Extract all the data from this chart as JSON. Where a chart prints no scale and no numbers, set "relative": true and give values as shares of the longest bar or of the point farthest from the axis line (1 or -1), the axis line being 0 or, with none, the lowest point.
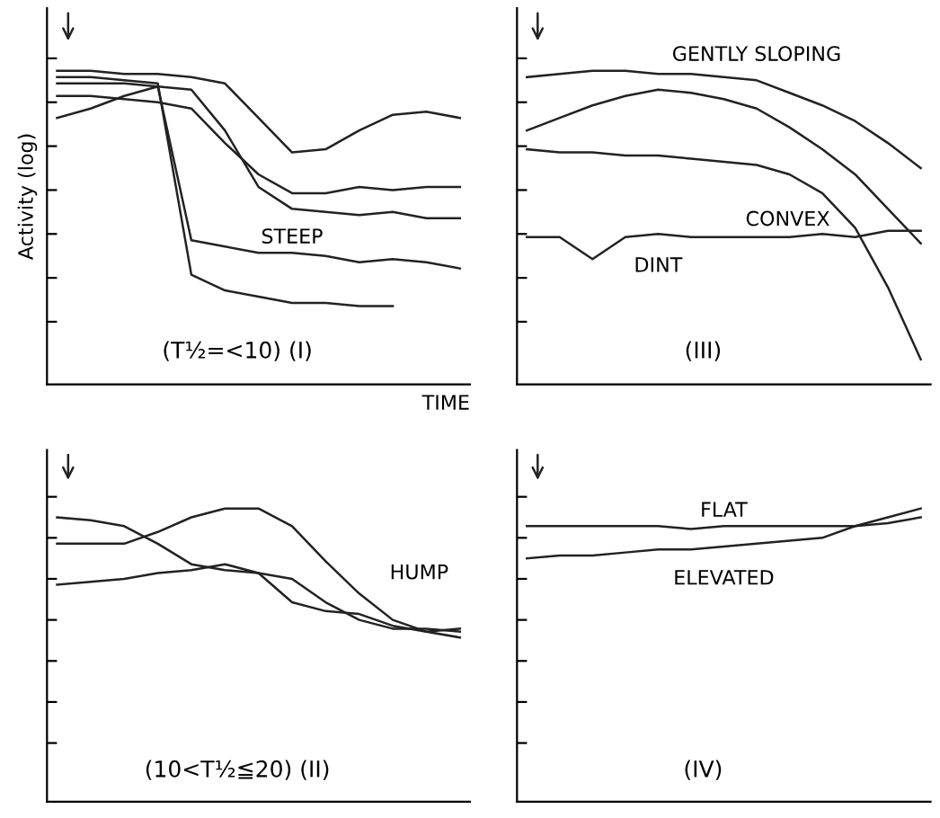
{
  "chart_data": [
    {
      "type": "line",
      "relative": true,
      "ylabel": "Activity (log)",
      "xlabel": "TIME",
      "legend": false,
      "grid": false,
      "tick_labels": false,
      "categories": [
        null,
        null,
        null,
        null,
        null,
        null,
        null,
        null,
        null,
        null,
        null,
        null,
        null
      ],
      "annotations": [
        "(T½=<10) (I)"
      ],
      "series": [
        {
          "color": "#222222",
          "values": [
            1,
            1,
            0.99,
            0.99,
            0.98,
            0.96,
            0.85,
            0.74,
            0.75,
            0.81,
            0.86,
            0.87,
            0.85
          ]
        },
        {
          "color": "#222222",
          "values": [
            0.92,
            0.92,
            0.91,
            0.9,
            0.88,
            0.77,
            0.67,
            0.61,
            0.61,
            0.63,
            0.62,
            0.63,
            0.63
          ]
        },
        {
          "color": "#222222",
          "values": [
            0.85,
            0.88,
            0.92,
            0.95,
            0.94,
            0.81,
            0.63,
            0.56,
            0.55,
            0.54,
            0.55,
            0.53,
            0.53
          ]
        },
        {
          "name": "STEEP",
          "color": "#222222",
          "values": [
            0.96,
            0.96,
            0.96,
            0.95,
            0.46,
            0.44,
            0.42,
            0.42,
            0.41,
            0.39,
            0.4,
            0.39,
            0.37
          ]
        },
        {
          "color": "#222222",
          "values": [
            0.98,
            0.98,
            0.97,
            0.96,
            0.35,
            0.3,
            0.28,
            0.26,
            0.26,
            0.25,
            0.25,
            null,
            null
          ]
        }
      ]
    },
    {
      "type": "line",
      "relative": true,
      "legend": false,
      "grid": false,
      "tick_labels": false,
      "categories": [
        null,
        null,
        null,
        null,
        null,
        null,
        null,
        null,
        null,
        null,
        null,
        null,
        null
      ],
      "annotations": [
        "(III)"
      ],
      "series": [
        {
          "name": "GENTLY SLOPING",
          "color": "#222222",
          "values": [
            0.98,
            0.99,
            1,
            1,
            0.99,
            0.99,
            0.98,
            0.97,
            0.93,
            0.89,
            0.84,
            0.77,
            0.69
          ]
        },
        {
          "color": "#222222",
          "values": [
            0.81,
            0.85,
            0.89,
            0.92,
            0.94,
            0.93,
            0.91,
            0.88,
            0.82,
            0.75,
            0.67,
            0.56,
            0.45
          ]
        },
        {
          "name": "CONVEX",
          "color": "#222222",
          "values": [
            0.75,
            0.74,
            0.74,
            0.73,
            0.73,
            0.72,
            0.71,
            0.7,
            0.67,
            0.61,
            0.5,
            0.31,
            0.08
          ]
        },
        {
          "name": "DINT",
          "color": "#222222",
          "values": [
            0.47,
            0.47,
            0.4,
            0.47,
            0.48,
            0.47,
            0.47,
            0.47,
            0.47,
            0.48,
            0.47,
            0.49,
            0.49
          ]
        }
      ]
    },
    {
      "type": "line",
      "relative": true,
      "legend": false,
      "grid": false,
      "tick_labels": false,
      "categories": [
        null,
        null,
        null,
        null,
        null,
        null,
        null,
        null,
        null,
        null,
        null,
        null,
        null
      ],
      "annotations": [
        "(10<T½≦20) (II)"
      ],
      "series": [
        {
          "name": "HUMP",
          "color": "#222222",
          "values": [
            0.88,
            0.88,
            0.88,
            0.92,
            0.97,
            1,
            1,
            0.94,
            0.82,
            0.71,
            0.62,
            0.58,
            0.56
          ]
        },
        {
          "color": "#222222",
          "values": [
            0.97,
            0.96,
            0.94,
            0.88,
            0.81,
            0.79,
            0.78,
            0.76,
            0.68,
            0.62,
            0.59,
            0.59,
            0.58
          ]
        },
        {
          "color": "#222222",
          "values": [
            0.74,
            0.75,
            0.76,
            0.78,
            0.79,
            0.81,
            0.78,
            0.68,
            0.65,
            0.64,
            0.6,
            0.58,
            0.59
          ]
        }
      ]
    },
    {
      "type": "line",
      "relative": true,
      "legend": false,
      "grid": false,
      "tick_labels": false,
      "categories": [
        null,
        null,
        null,
        null,
        null,
        null,
        null,
        null,
        null,
        null,
        null,
        null,
        null
      ],
      "annotations": [
        "(IV)"
      ],
      "series": [
        {
          "name": "FLAT",
          "color": "#222222",
          "values": [
            0.94,
            0.94,
            0.94,
            0.94,
            0.94,
            0.93,
            0.94,
            0.94,
            0.94,
            0.94,
            0.94,
            0.95,
            0.97
          ]
        },
        {
          "name": "ELEVATED",
          "color": "#222222",
          "values": [
            0.83,
            0.84,
            0.84,
            0.85,
            0.86,
            0.86,
            0.87,
            0.88,
            0.89,
            0.9,
            0.94,
            0.97,
            1
          ]
        }
      ]
    }
  ]
}
